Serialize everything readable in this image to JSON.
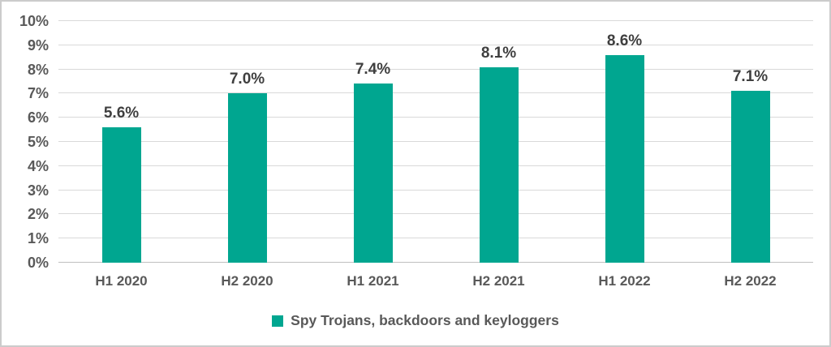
{
  "chart_data": {
    "type": "bar",
    "categories": [
      "H1 2020",
      "H2 2020",
      "H1 2021",
      "H2 2021",
      "H1 2022",
      "H2 2022"
    ],
    "series": [
      {
        "name": "Spy Trojans, backdoors and keyloggers",
        "values": [
          5.6,
          7.0,
          7.4,
          8.1,
          8.6,
          7.1
        ],
        "value_labels": [
          "5.6%",
          "7.0%",
          "7.4%",
          "8.1%",
          "8.6%",
          "7.1%"
        ]
      }
    ],
    "title": "",
    "xlabel": "",
    "ylabel": "",
    "ylim": [
      0,
      10
    ],
    "y_ticks": [
      "0%",
      "1%",
      "2%",
      "3%",
      "4%",
      "5%",
      "6%",
      "7%",
      "8%",
      "9%",
      "10%"
    ],
    "grid": true,
    "legend_position": "bottom"
  },
  "colors": {
    "bar": "#00A690",
    "gridline": "#D9D9D9",
    "baseline": "#BFBFBF",
    "axis_text": "#595959",
    "data_label_text": "#3F3F3F",
    "frame_border": "#CCCCCC",
    "background": "#FFFFFF"
  },
  "legend": {
    "label": "Spy Trojans, backdoors and keyloggers",
    "swatch_color": "#00A690"
  }
}
